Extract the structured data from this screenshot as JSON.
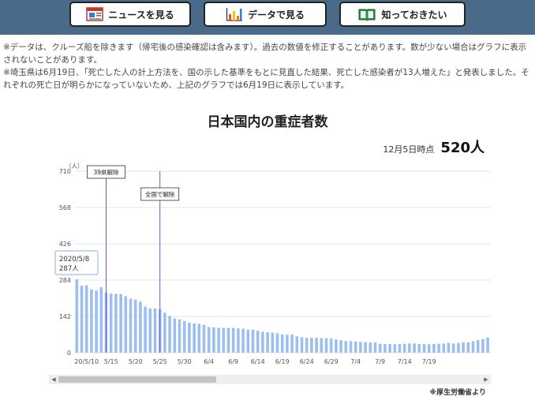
{
  "nav": {
    "news_label": "ニュースを見る",
    "data_label": "データで見る",
    "know_label": "知っておきたい"
  },
  "notes": {
    "line1": "※データは、クルーズ船を除きます（帰宅後の感染確認は含みます）。過去の数値を修正することがあります。数が少ない場合はグラフに表示されないことがあります。",
    "line2": "※埼玉県は6月19日、「死亡した人の計上方法を、国の示した基準をもとに見直した結果、死亡した感染者が13人増えた」と発表しました。それぞれの死亡日が明らかになっていないため、上記のグラフでは6月19日に表示しています。"
  },
  "asof": {
    "label": "12月5日時点",
    "value": "520人"
  },
  "source": "※厚生労働省より",
  "colors": {
    "bar": "#9dbff0",
    "marker": "#6a5acd",
    "grid": "#e6e6e6",
    "topbar": "#4a6a8a"
  },
  "chart_data": {
    "type": "bar",
    "title": "日本国内の重症者数",
    "ylabel": "（人）",
    "ylim": [
      0,
      710
    ],
    "yticks": [
      "0",
      "142",
      "284",
      "426",
      "568",
      "710"
    ],
    "xtick_labels": [
      "20/5/10",
      "5/15",
      "5/20",
      "5/25",
      "5/30",
      "6/4",
      "6/9",
      "6/14",
      "6/19",
      "6/24",
      "6/29",
      "7/4",
      "7/9",
      "7/14",
      "7/19"
    ],
    "start_date": "2020-05-08",
    "values": [
      287,
      262,
      264,
      247,
      243,
      256,
      236,
      231,
      230,
      229,
      221,
      211,
      208,
      200,
      180,
      173,
      173,
      170,
      156,
      144,
      134,
      130,
      124,
      118,
      114,
      113,
      109,
      100,
      99,
      97,
      97,
      97,
      97,
      95,
      94,
      90,
      90,
      86,
      82,
      80,
      78,
      76,
      71,
      70,
      71,
      64,
      61,
      58,
      58,
      58,
      57,
      57,
      55,
      52,
      49,
      46,
      45,
      44,
      42,
      41,
      40,
      40,
      35,
      34,
      34,
      33,
      34,
      35,
      36,
      36,
      34,
      34,
      33,
      34,
      35,
      36,
      38,
      36,
      38,
      40,
      40,
      45,
      49,
      53,
      59
    ],
    "annotations": [
      {
        "label": "39県解除",
        "date": "5/14"
      },
      {
        "label": "全国で解除",
        "date": "5/25"
      }
    ],
    "tooltip": {
      "date": "2020/5/8",
      "value": "287人"
    },
    "grid": true
  }
}
